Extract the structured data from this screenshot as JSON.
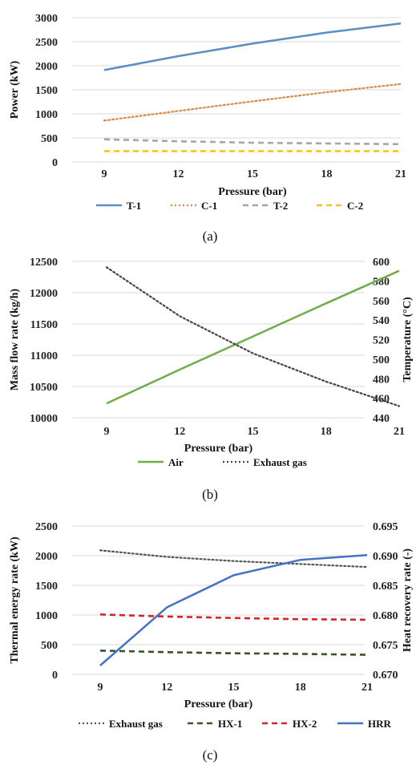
{
  "chart_data": [
    {
      "panel": "a",
      "type": "line",
      "caption": "(a)",
      "xlabel": "Pressure (bar)",
      "ylabel": "Power (kW)",
      "x": [
        9,
        12,
        15,
        18,
        21
      ],
      "xticks": [
        "9",
        "12",
        "15",
        "18",
        "21"
      ],
      "ylim": [
        0,
        3000
      ],
      "yticks": [
        "0",
        "500",
        "1000",
        "1500",
        "2000",
        "2500",
        "3000"
      ],
      "ytick_values": [
        0,
        500,
        1000,
        1500,
        2000,
        2500,
        3000
      ],
      "grid": true,
      "legend_position": "bottom",
      "series": [
        {
          "name": "T-1",
          "values": [
            1910,
            2200,
            2460,
            2690,
            2880
          ],
          "color": "#5b8ec4",
          "style": "solid"
        },
        {
          "name": "C-1",
          "values": [
            860,
            1060,
            1260,
            1450,
            1620
          ],
          "color": "#d98b45",
          "style": "dotted"
        },
        {
          "name": "T-2",
          "values": [
            470,
            430,
            400,
            385,
            370
          ],
          "color": "#a6a6a6",
          "style": "dashed"
        },
        {
          "name": "C-2",
          "values": [
            225,
            225,
            225,
            225,
            225
          ],
          "color": "#f2c414",
          "style": "dashed"
        }
      ]
    },
    {
      "panel": "b",
      "type": "line",
      "caption": "(b)",
      "xlabel": "Pressure (bar)",
      "ylabel": "Mass flow rate (kg/h)",
      "y2label": "Temperature (°C)",
      "x": [
        9,
        12,
        15,
        18,
        21
      ],
      "xticks": [
        "9",
        "12",
        "15",
        "18",
        "21"
      ],
      "ylim": [
        10000,
        12500
      ],
      "yticks": [
        "10000",
        "10500",
        "11000",
        "11500",
        "12000",
        "12500"
      ],
      "ytick_values": [
        10000,
        10500,
        11000,
        11500,
        12000,
        12500
      ],
      "y2lim": [
        440,
        600
      ],
      "y2ticks": [
        "440",
        "460",
        "480",
        "500",
        "520",
        "540",
        "560",
        "580",
        "600"
      ],
      "y2tick_values": [
        440,
        460,
        480,
        500,
        520,
        540,
        560,
        580,
        600
      ],
      "grid": true,
      "legend_position": "bottom",
      "series": [
        {
          "name": "Air",
          "axis": "left",
          "values": [
            10230,
            10770,
            11300,
            11830,
            12350
          ],
          "color": "#70ad47",
          "style": "solid"
        },
        {
          "name": "Exhaust gas",
          "axis": "right",
          "values": [
            594,
            544,
            506,
            477,
            452
          ],
          "color": "#444444",
          "style": "dotted"
        }
      ]
    },
    {
      "panel": "c",
      "type": "line",
      "caption": "(c)",
      "xlabel": "Pressure (bar)",
      "ylabel": "Thermal energy rate (kW)",
      "y2label": "Heat recovery rate (-)",
      "x": [
        9,
        12,
        15,
        18,
        21
      ],
      "xticks": [
        "9",
        "12",
        "15",
        "18",
        "21"
      ],
      "ylim": [
        0,
        2500
      ],
      "yticks": [
        "0",
        "500",
        "1000",
        "1500",
        "2000",
        "2500"
      ],
      "ytick_values": [
        0,
        500,
        1000,
        1500,
        2000,
        2500
      ],
      "y2lim": [
        0.67,
        0.695
      ],
      "y2ticks": [
        "0.670",
        "0.675",
        "0.680",
        "0.685",
        "0.690",
        "0.695"
      ],
      "y2tick_values": [
        0.67,
        0.675,
        0.68,
        0.685,
        0.69,
        0.695
      ],
      "grid": true,
      "legend_position": "bottom",
      "series": [
        {
          "name": "Exhaust gas",
          "axis": "left",
          "values": [
            2090,
            1980,
            1910,
            1860,
            1810
          ],
          "color": "#555555",
          "style": "dotted"
        },
        {
          "name": "HX-1",
          "axis": "left",
          "values": [
            400,
            375,
            355,
            345,
            330
          ],
          "color": "#375623",
          "style": "dashed"
        },
        {
          "name": "HX-2",
          "axis": "left",
          "values": [
            1010,
            975,
            950,
            930,
            920
          ],
          "color": "#e02020",
          "style": "dashed"
        },
        {
          "name": "HRR",
          "axis": "right",
          "values": [
            0.6715,
            0.6813,
            0.6867,
            0.6893,
            0.6901
          ],
          "color": "#4472c4",
          "style": "solid"
        }
      ]
    }
  ]
}
